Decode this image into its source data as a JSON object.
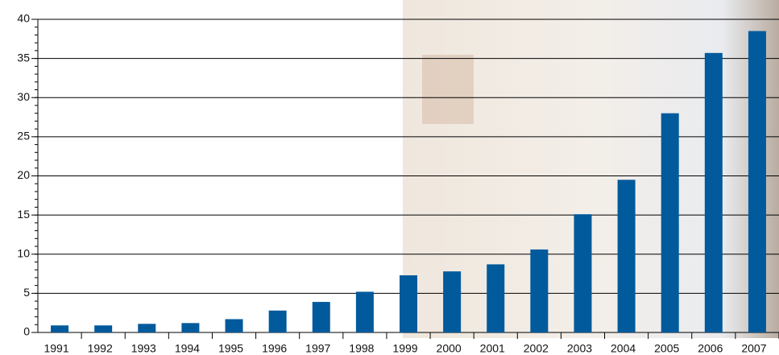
{
  "chart_data": {
    "type": "bar",
    "categories": [
      "1991",
      "1992",
      "1993",
      "1994",
      "1995",
      "1996",
      "1997",
      "1998",
      "1999",
      "2000",
      "2001",
      "2002",
      "2003",
      "2004",
      "2005",
      "2006",
      "2007"
    ],
    "values": [
      0.9,
      0.9,
      1.1,
      1.2,
      1.7,
      2.8,
      3.9,
      5.2,
      7.3,
      7.8,
      8.7,
      10.6,
      15.1,
      19.5,
      28.0,
      35.7,
      38.5
    ],
    "color": "#005a9c",
    "ylim": [
      0,
      40
    ],
    "yticks": [
      0,
      5,
      10,
      15,
      20,
      25,
      30,
      35,
      40
    ],
    "grid": true
  }
}
